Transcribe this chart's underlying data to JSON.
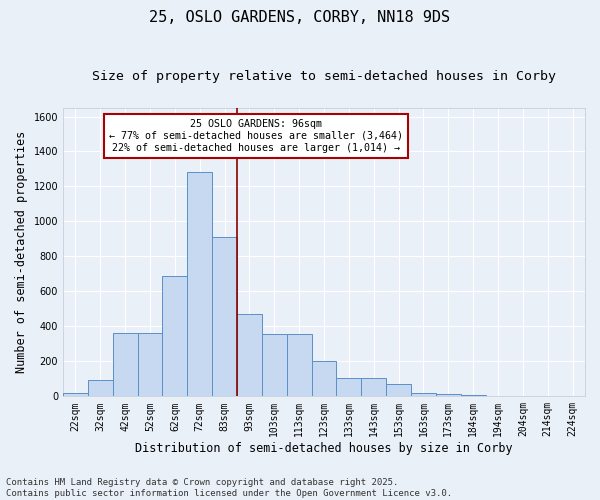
{
  "title": "25, OSLO GARDENS, CORBY, NN18 9DS",
  "subtitle": "Size of property relative to semi-detached houses in Corby",
  "xlabel": "Distribution of semi-detached houses by size in Corby",
  "ylabel": "Number of semi-detached properties",
  "footnote": "Contains HM Land Registry data © Crown copyright and database right 2025.\nContains public sector information licensed under the Open Government Licence v3.0.",
  "bar_labels": [
    "22sqm",
    "32sqm",
    "42sqm",
    "52sqm",
    "62sqm",
    "72sqm",
    "83sqm",
    "93sqm",
    "103sqm",
    "113sqm",
    "123sqm",
    "133sqm",
    "143sqm",
    "153sqm",
    "163sqm",
    "173sqm",
    "184sqm",
    "194sqm",
    "204sqm",
    "214sqm",
    "224sqm"
  ],
  "bar_values": [
    20,
    95,
    360,
    360,
    690,
    1280,
    910,
    470,
    355,
    355,
    200,
    105,
    105,
    70,
    20,
    15,
    5,
    0,
    0,
    0,
    0
  ],
  "bar_color": "#c6d9f0",
  "bar_edgecolor": "#5b8fc9",
  "ylim": [
    0,
    1650
  ],
  "yticks": [
    0,
    200,
    400,
    600,
    800,
    1000,
    1200,
    1400,
    1600
  ],
  "property_label": "25 OSLO GARDENS: 96sqm",
  "pct_smaller": 77,
  "count_smaller": 3464,
  "pct_larger": 22,
  "count_larger": 1014,
  "vline_bin_index": 7,
  "background_color": "#eaf0f8",
  "grid_color": "#ffffff",
  "annotation_box_edgecolor": "#aa0000",
  "title_fontsize": 11,
  "subtitle_fontsize": 9.5,
  "axis_label_fontsize": 8.5,
  "tick_fontsize": 7,
  "footnote_fontsize": 6.5
}
